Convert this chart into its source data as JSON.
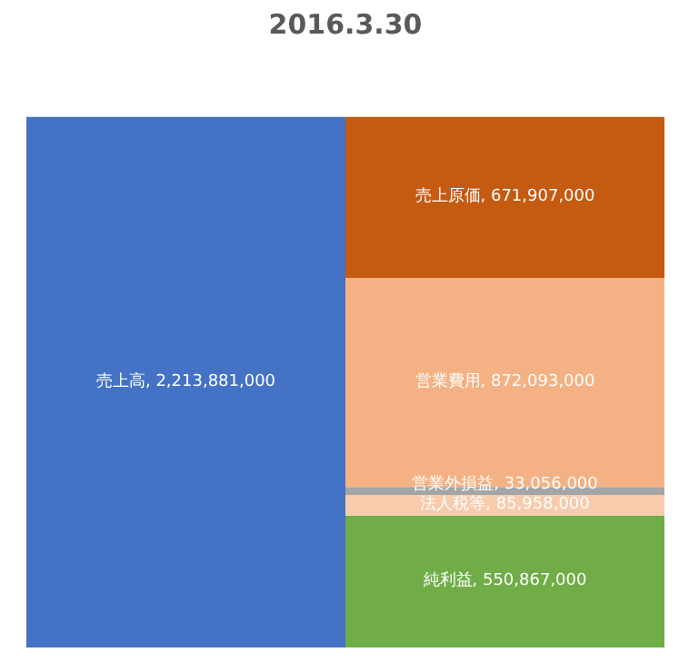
{
  "chart_data": {
    "type": "bar",
    "title": "2016.3.30",
    "categories": [
      null,
      null
    ],
    "stacked": true,
    "series": [
      {
        "color": "#4472c4",
        "values": [
          2213881000,
          null
        ],
        "value_labels": [
          "売上高, 2,213,881,000",
          null
        ]
      },
      {
        "color": "#70ad47",
        "values": [
          null,
          550867000
        ],
        "value_labels": [
          null,
          "純利益, 550,867,000"
        ]
      },
      {
        "color": "#f8cbad",
        "values": [
          null,
          85958000
        ],
        "value_labels": [
          null,
          "法人税等, 85,958,000"
        ]
      },
      {
        "color": "#a5a5a5",
        "values": [
          null,
          33056000
        ],
        "value_labels": [
          null,
          "営業外損益, 33,056,000"
        ]
      },
      {
        "color": "#f4b183",
        "values": [
          null,
          872093000
        ],
        "value_labels": [
          null,
          "営業費用, 872,093,000"
        ]
      },
      {
        "color": "#c55a11",
        "values": [
          null,
          671907000
        ],
        "value_labels": [
          null,
          "売上原価, 671,907,000"
        ]
      }
    ]
  }
}
